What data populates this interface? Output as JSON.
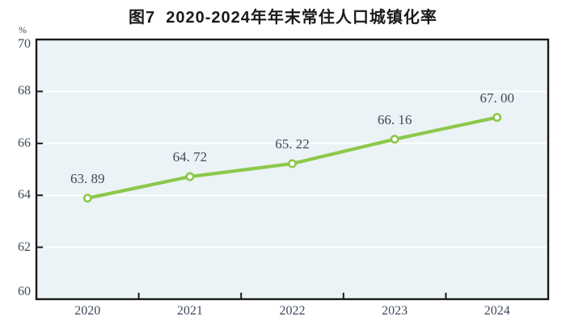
{
  "chart_data": {
    "type": "line",
    "title": "图7  2020-2024年年末常住人口城镇化率",
    "unit_label": "%",
    "categories": [
      "2020",
      "2021",
      "2022",
      "2023",
      "2024"
    ],
    "values": [
      63.89,
      64.72,
      65.22,
      66.16,
      67.0
    ],
    "point_labels": [
      "63. 89",
      "64. 72",
      "65. 22",
      "66. 16",
      "67. 00"
    ],
    "ylim": [
      60,
      70
    ],
    "yticks": [
      60,
      62,
      64,
      66,
      68,
      70
    ],
    "xlabel": "",
    "ylabel": "%",
    "grid": "horizontal",
    "legend_position": "none",
    "colors": {
      "line": "#8DC84B",
      "marker_fill": "#FFFFFF",
      "plot_background": "#EBF3F6",
      "gridline": "#FFFFFF",
      "axis_border": "#1A1A1A",
      "tick_text": "#3E4A59",
      "title_text": "#1A1A1A"
    }
  }
}
